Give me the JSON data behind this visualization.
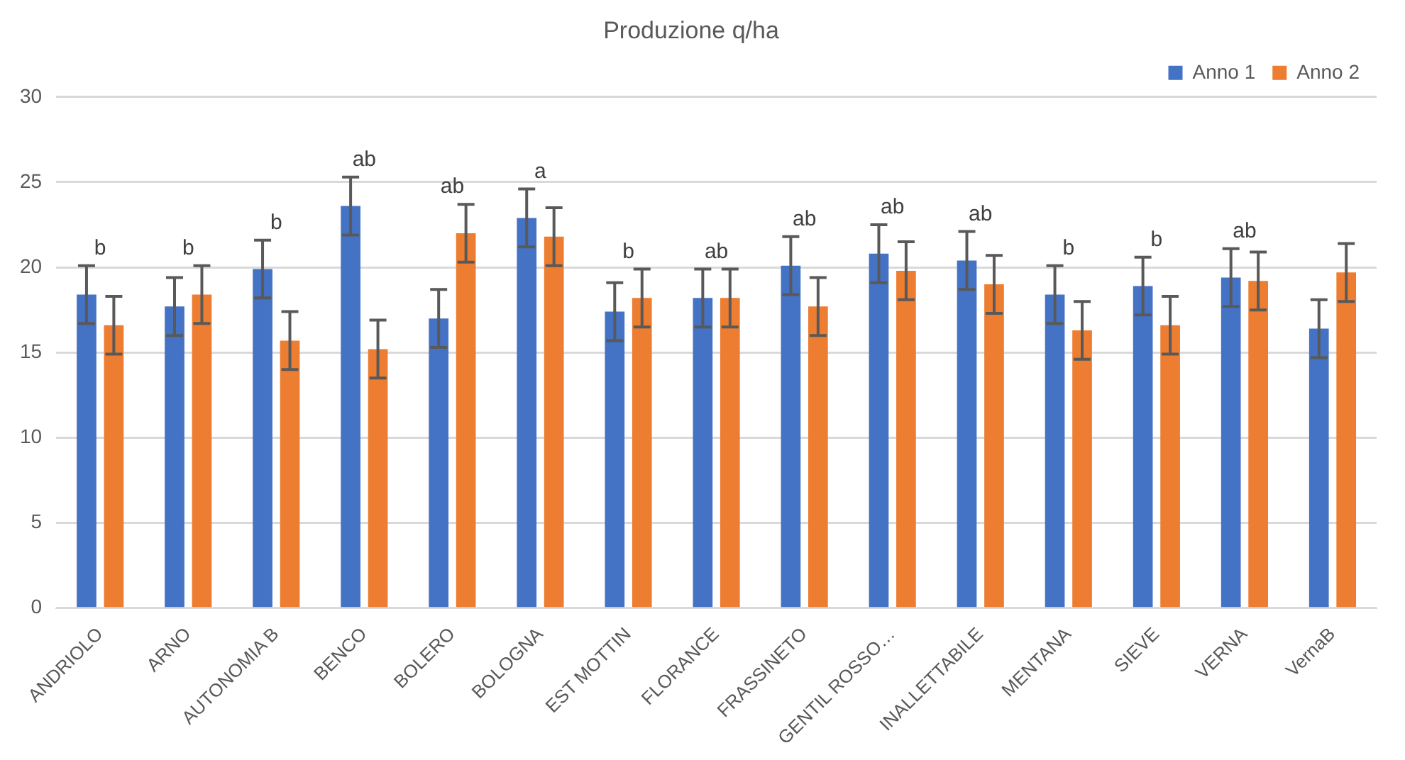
{
  "chart_data": {
    "type": "bar",
    "title": "Produzione q/ha",
    "categories": [
      "ANDRIOLO",
      "ARNO",
      "AUTONOMIA B",
      "BENCO",
      "BOLERO",
      "BOLOGNA",
      "EST MOTTIN",
      "FLORANCE",
      "FRASSINETO",
      "GENTIL ROSSO…",
      "INALLETTABILE",
      "MENTANA",
      "SIEVE",
      "VERNA",
      "VernaB"
    ],
    "series": [
      {
        "name": "Anno 1",
        "color": "#4472c4",
        "values": [
          18.4,
          17.7,
          19.9,
          23.6,
          17.0,
          22.9,
          17.4,
          18.2,
          20.1,
          20.8,
          20.4,
          18.4,
          18.9,
          19.4,
          16.4
        ],
        "errors": [
          1.7,
          1.7,
          1.7,
          1.7,
          1.7,
          1.7,
          1.7,
          1.7,
          1.7,
          1.7,
          1.7,
          1.7,
          1.7,
          1.7,
          1.7
        ]
      },
      {
        "name": "Anno 2",
        "color": "#ed7d31",
        "values": [
          16.6,
          18.4,
          15.7,
          15.2,
          22.0,
          21.8,
          18.2,
          18.2,
          17.7,
          19.8,
          19.0,
          16.3,
          16.6,
          19.2,
          19.7
        ],
        "errors": [
          1.7,
          1.7,
          1.7,
          1.7,
          1.7,
          1.7,
          1.7,
          1.7,
          1.7,
          1.7,
          1.7,
          1.7,
          1.7,
          1.7,
          1.7
        ]
      }
    ],
    "ylim": [
      0,
      30
    ],
    "yticks": [
      0,
      5,
      10,
      15,
      20,
      25,
      30
    ],
    "grid": "y",
    "legend": "top right",
    "annotations": [
      "b",
      "b",
      "b",
      "ab",
      "ab",
      "a",
      "b",
      "ab",
      "ab",
      "ab",
      "ab",
      "b",
      "b",
      "ab"
    ]
  }
}
